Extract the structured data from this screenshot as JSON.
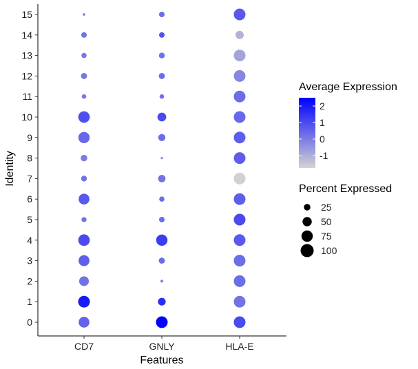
{
  "chart_data": {
    "type": "dotplot",
    "title": "",
    "xlabel": "Features",
    "ylabel": "Identity",
    "features": [
      "CD7",
      "GNLY",
      "HLA-E"
    ],
    "identities": [
      "0",
      "1",
      "2",
      "3",
      "4",
      "5",
      "6",
      "7",
      "8",
      "9",
      "10",
      "11",
      "12",
      "13",
      "14",
      "15"
    ],
    "color_scale": {
      "title": "Average Expression",
      "low_color": "#d3d3d3",
      "high_color": "#0000ff",
      "range": [
        -1.75,
        2.5
      ],
      "ticks": [
        2,
        1,
        0,
        -1
      ],
      "tick_labels": [
        "2",
        "1",
        "0",
        "-1"
      ]
    },
    "size_scale": {
      "title": "Percent Expressed",
      "breaks": [
        25,
        50,
        75,
        100
      ],
      "break_labels": [
        "25",
        "50",
        "75",
        "100"
      ]
    },
    "points": [
      {
        "feature": "CD7",
        "identity": "0",
        "avg_exp": 0.5,
        "pct_exp": 68
      },
      {
        "feature": "CD7",
        "identity": "1",
        "avg_exp": 2.0,
        "pct_exp": 80
      },
      {
        "feature": "CD7",
        "identity": "2",
        "avg_exp": 0.2,
        "pct_exp": 55
      },
      {
        "feature": "CD7",
        "identity": "3",
        "avg_exp": 0.6,
        "pct_exp": 70
      },
      {
        "feature": "CD7",
        "identity": "4",
        "avg_exp": 1.0,
        "pct_exp": 78
      },
      {
        "feature": "CD7",
        "identity": "5",
        "avg_exp": 0.2,
        "pct_exp": 15
      },
      {
        "feature": "CD7",
        "identity": "6",
        "avg_exp": 0.7,
        "pct_exp": 68
      },
      {
        "feature": "CD7",
        "identity": "7",
        "avg_exp": 0.2,
        "pct_exp": 20
      },
      {
        "feature": "CD7",
        "identity": "8",
        "avg_exp": 0.0,
        "pct_exp": 25
      },
      {
        "feature": "CD7",
        "identity": "9",
        "avg_exp": 0.4,
        "pct_exp": 75
      },
      {
        "feature": "CD7",
        "identity": "10",
        "avg_exp": 0.9,
        "pct_exp": 78
      },
      {
        "feature": "CD7",
        "identity": "11",
        "avg_exp": 0.1,
        "pct_exp": 12
      },
      {
        "feature": "CD7",
        "identity": "12",
        "avg_exp": 0.1,
        "pct_exp": 22
      },
      {
        "feature": "CD7",
        "identity": "13",
        "avg_exp": 0.1,
        "pct_exp": 16
      },
      {
        "feature": "CD7",
        "identity": "14",
        "avg_exp": 0.2,
        "pct_exp": 18
      },
      {
        "feature": "CD7",
        "identity": "15",
        "avg_exp": -0.2,
        "pct_exp": 4
      },
      {
        "feature": "GNLY",
        "identity": "0",
        "avg_exp": 2.5,
        "pct_exp": 80
      },
      {
        "feature": "GNLY",
        "identity": "1",
        "avg_exp": 1.6,
        "pct_exp": 35
      },
      {
        "feature": "GNLY",
        "identity": "2",
        "avg_exp": -0.1,
        "pct_exp": 5
      },
      {
        "feature": "GNLY",
        "identity": "3",
        "avg_exp": 0.3,
        "pct_exp": 22
      },
      {
        "feature": "GNLY",
        "identity": "4",
        "avg_exp": 1.3,
        "pct_exp": 75
      },
      {
        "feature": "GNLY",
        "identity": "5",
        "avg_exp": 0.3,
        "pct_exp": 18
      },
      {
        "feature": "GNLY",
        "identity": "6",
        "avg_exp": 0.3,
        "pct_exp": 16
      },
      {
        "feature": "GNLY",
        "identity": "7",
        "avg_exp": 0.2,
        "pct_exp": 32
      },
      {
        "feature": "GNLY",
        "identity": "8",
        "avg_exp": -0.2,
        "pct_exp": 3
      },
      {
        "feature": "GNLY",
        "identity": "9",
        "avg_exp": 0.3,
        "pct_exp": 30
      },
      {
        "feature": "GNLY",
        "identity": "10",
        "avg_exp": 1.0,
        "pct_exp": 45
      },
      {
        "feature": "GNLY",
        "identity": "11",
        "avg_exp": 0.2,
        "pct_exp": 12
      },
      {
        "feature": "GNLY",
        "identity": "12",
        "avg_exp": 0.3,
        "pct_exp": 22
      },
      {
        "feature": "GNLY",
        "identity": "13",
        "avg_exp": 0.2,
        "pct_exp": 20
      },
      {
        "feature": "GNLY",
        "identity": "14",
        "avg_exp": 0.8,
        "pct_exp": 18
      },
      {
        "feature": "GNLY",
        "identity": "15",
        "avg_exp": 0.3,
        "pct_exp": 18
      },
      {
        "feature": "HLA-E",
        "identity": "0",
        "avg_exp": 1.0,
        "pct_exp": 80
      },
      {
        "feature": "HLA-E",
        "identity": "1",
        "avg_exp": 0.2,
        "pct_exp": 80
      },
      {
        "feature": "HLA-E",
        "identity": "2",
        "avg_exp": 0.3,
        "pct_exp": 80
      },
      {
        "feature": "HLA-E",
        "identity": "3",
        "avg_exp": 0.3,
        "pct_exp": 80
      },
      {
        "feature": "HLA-E",
        "identity": "4",
        "avg_exp": 0.7,
        "pct_exp": 80
      },
      {
        "feature": "HLA-E",
        "identity": "5",
        "avg_exp": 1.0,
        "pct_exp": 80
      },
      {
        "feature": "HLA-E",
        "identity": "6",
        "avg_exp": 0.6,
        "pct_exp": 80
      },
      {
        "feature": "HLA-E",
        "identity": "7",
        "avg_exp": -1.7,
        "pct_exp": 80
      },
      {
        "feature": "HLA-E",
        "identity": "8",
        "avg_exp": 0.6,
        "pct_exp": 80
      },
      {
        "feature": "HLA-E",
        "identity": "9",
        "avg_exp": 0.6,
        "pct_exp": 80
      },
      {
        "feature": "HLA-E",
        "identity": "10",
        "avg_exp": 0.4,
        "pct_exp": 80
      },
      {
        "feature": "HLA-E",
        "identity": "11",
        "avg_exp": 0.3,
        "pct_exp": 80
      },
      {
        "feature": "HLA-E",
        "identity": "12",
        "avg_exp": -0.2,
        "pct_exp": 80
      },
      {
        "feature": "HLA-E",
        "identity": "13",
        "avg_exp": -0.8,
        "pct_exp": 80
      },
      {
        "feature": "HLA-E",
        "identity": "14",
        "avg_exp": -1.1,
        "pct_exp": 40
      },
      {
        "feature": "HLA-E",
        "identity": "15",
        "avg_exp": 0.7,
        "pct_exp": 80
      }
    ]
  }
}
